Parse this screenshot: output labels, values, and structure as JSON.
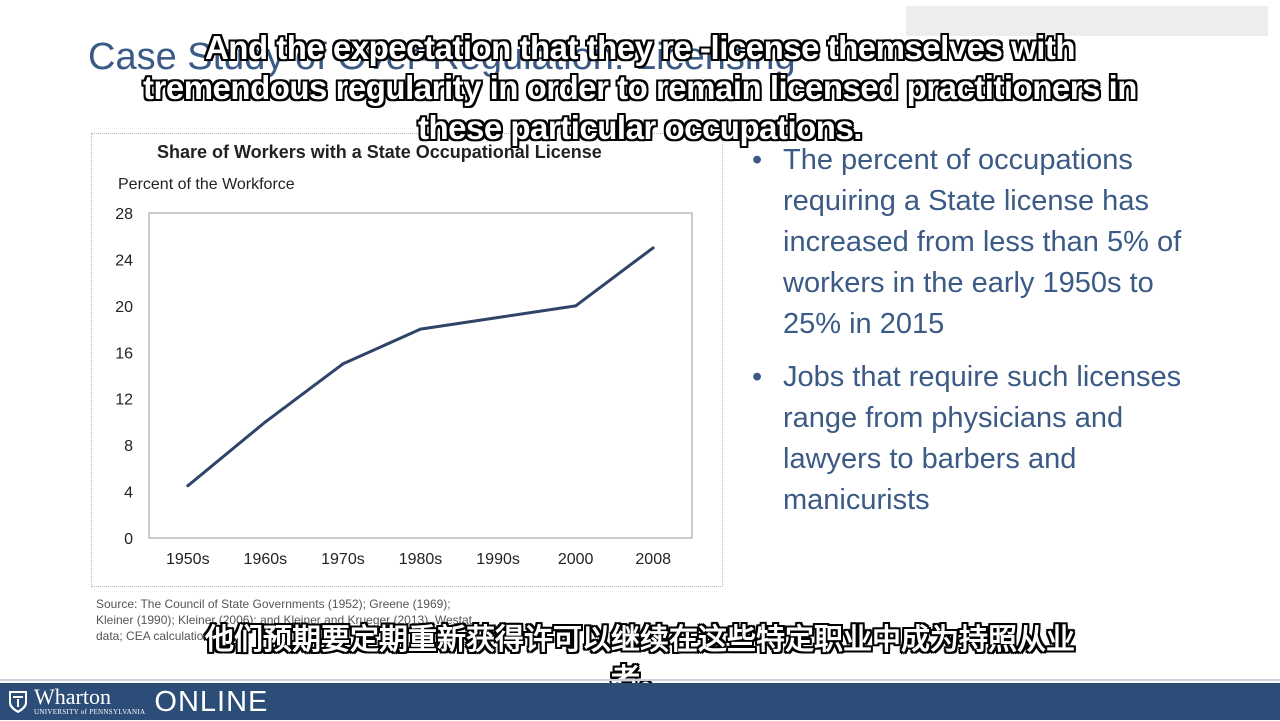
{
  "slide": {
    "title": "Case Study of Over-Regulation: Licensing"
  },
  "captions": {
    "english": "And the expectation that they re -license themselves with tremendous regularity in order to remain licensed practitioners in these particular occupations.",
    "chinese": "他们预期要定期重新获得许可以继续在这些特定职业中成为持照从业者。"
  },
  "bullets": [
    "The percent of occupations requiring a State license has increased from less than 5% of workers in the early 1950s to 25% in 2015",
    "Jobs that require such licenses range from physicians and lawyers to barbers and manicurists"
  ],
  "source": "Source: The Council of State Governments (1952); Greene (1969); Kleiner (1990); Kleiner (2006); and Kleiner and Krueger (2013), Westat data; CEA calculations.",
  "footer": {
    "brand": "Wharton",
    "brand_sub": "UNIVERSITY of PENNSYLVANIA",
    "online": "ONLINE"
  },
  "colors": {
    "accent_text": "#3b5a86",
    "line": "#2f4468",
    "footer_bar": "#2c4d78"
  },
  "chart_data": {
    "type": "line",
    "title": "Share of Workers with a State Occupational License",
    "ylabel": "Percent of the Workforce",
    "xlabel": "",
    "categories": [
      "1950s",
      "1960s",
      "1970s",
      "1980s",
      "1990s",
      "2000",
      "2008"
    ],
    "values": [
      4.5,
      10,
      15,
      18,
      19,
      20,
      25
    ],
    "ylim": [
      0,
      28
    ],
    "yticks": [
      0,
      4,
      8,
      12,
      16,
      20,
      24,
      28
    ],
    "grid": false,
    "legend": "none"
  }
}
